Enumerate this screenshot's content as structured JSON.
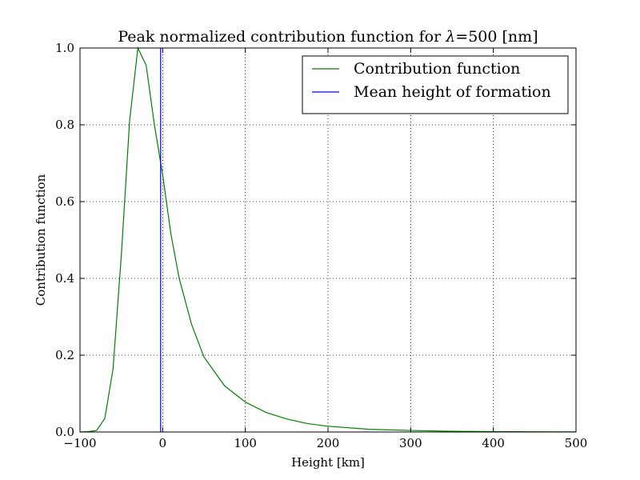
{
  "chart_data": {
    "type": "line",
    "title": "Peak normalized contribution function for λ=500 [nm]",
    "xlabel": "Height [km]",
    "ylabel": "Contribution function",
    "xlim": [
      -100,
      500
    ],
    "ylim": [
      0.0,
      1.0
    ],
    "x_ticks": [
      -100,
      0,
      100,
      200,
      300,
      400,
      500
    ],
    "x_tick_labels": [
      "−100",
      "0",
      "100",
      "200",
      "300",
      "400",
      "500"
    ],
    "y_ticks": [
      0.0,
      0.2,
      0.4,
      0.6,
      0.8,
      1.0
    ],
    "y_tick_labels": [
      "0.0",
      "0.2",
      "0.4",
      "0.6",
      "0.8",
      "1.0"
    ],
    "grid": true,
    "legend_position": "top-right",
    "series": [
      {
        "name": "Contribution function",
        "color": "#008000",
        "x": [
          -100,
          -90,
          -80,
          -70,
          -60,
          -50,
          -40,
          -30,
          -20,
          -10,
          0,
          10,
          20,
          35,
          50,
          75,
          100,
          125,
          150,
          175,
          200,
          250,
          300,
          350,
          400,
          450,
          500
        ],
        "y": [
          0.0,
          0.001,
          0.004,
          0.035,
          0.165,
          0.46,
          0.81,
          1.0,
          0.955,
          0.8,
          0.67,
          0.515,
          0.4,
          0.28,
          0.195,
          0.12,
          0.078,
          0.051,
          0.034,
          0.022,
          0.015,
          0.007,
          0.004,
          0.002,
          0.001,
          0.0005,
          0.0002
        ]
      }
    ],
    "vlines": [
      {
        "name": "Mean height of formation",
        "color": "#0000ff",
        "x": -2.5
      }
    ]
  }
}
